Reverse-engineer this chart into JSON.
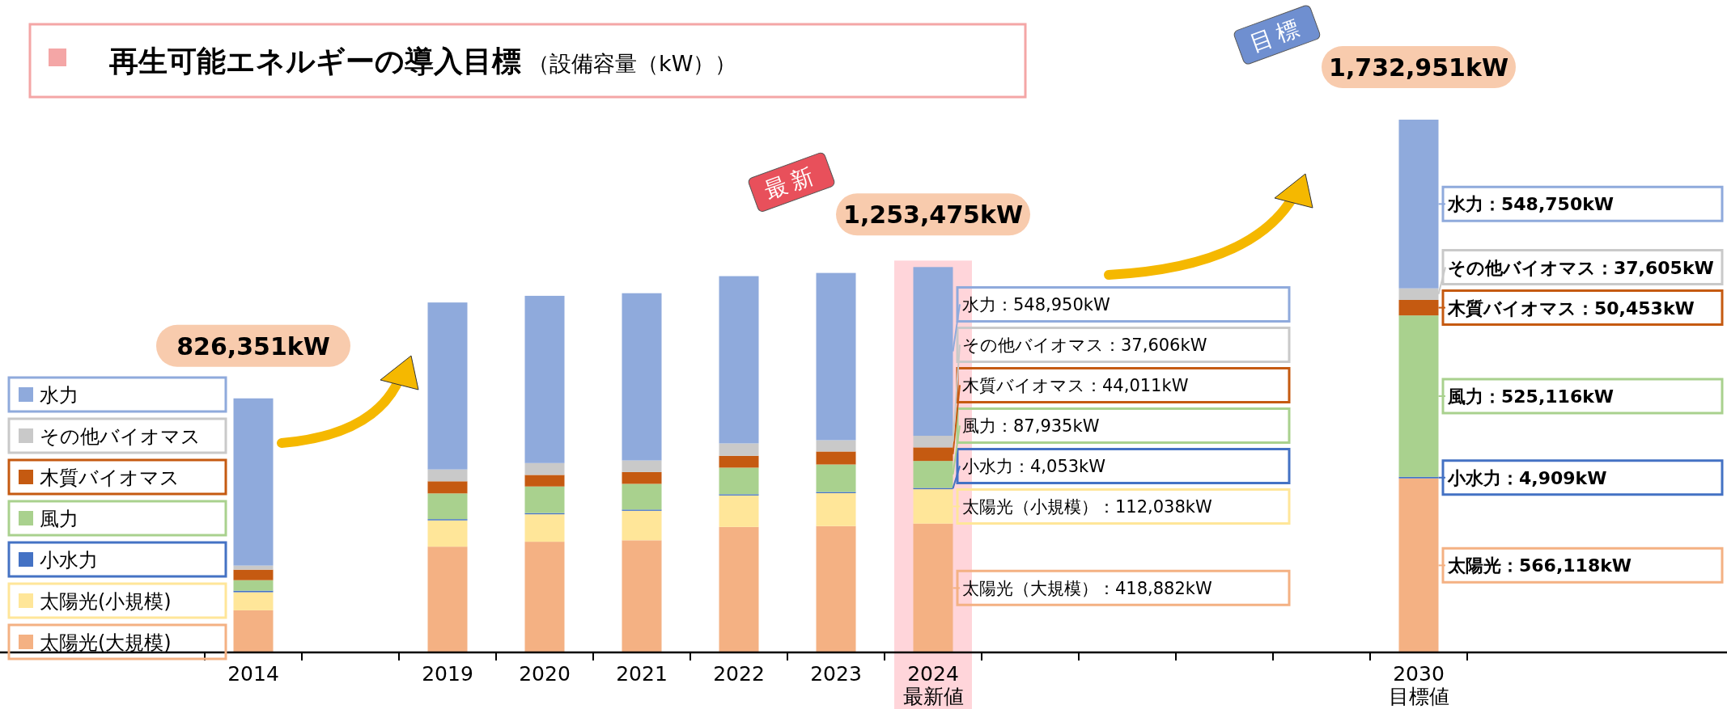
{
  "chart_data": {
    "type": "bar",
    "stacked": true,
    "title": "再生可能エネルギーの導入目標",
    "subtitle": "（設備容量（kW））",
    "categories": [
      "2014",
      null,
      "2019",
      "2020",
      "2021",
      "2022",
      "2023",
      "2024\n最新値",
      null,
      null,
      null,
      null,
      "2030\n目標値"
    ],
    "series": [
      {
        "name": "太陽光(大規模)",
        "color": "#f4b183",
        "values": [
          137000,
          null,
          344000,
          360000,
          364700,
          408000,
          410800,
          418882,
          null,
          null,
          null,
          null,
          566118
        ],
        "value_labels": [
          null,
          null,
          null,
          null,
          null,
          null,
          null,
          "太陽光（大規模）：418,882kW",
          null,
          null,
          null,
          null,
          "太陽光：566,118kW"
        ]
      },
      {
        "name": "太陽光(小規模)",
        "color": "#ffe699",
        "values": [
          58800,
          null,
          85500,
          89300,
          95900,
          102500,
          107200,
          112038,
          null,
          null,
          null,
          null,
          null
        ],
        "value_labels": [
          null,
          null,
          null,
          null,
          null,
          null,
          null,
          "太陽光（小規模）：112,038kW",
          null,
          null,
          null,
          null,
          null
        ]
      },
      {
        "name": "小水力",
        "color": "#4472c4",
        "values": [
          5000,
          null,
          4000,
          4000,
          4000,
          4000,
          4000,
          4053,
          null,
          null,
          null,
          null,
          4909
        ],
        "value_labels": [
          null,
          null,
          null,
          null,
          null,
          null,
          null,
          "小水力：4,053kW",
          null,
          null,
          null,
          null,
          "小水力：4,909kW"
        ]
      },
      {
        "name": "風力",
        "color": "#a9d18e",
        "values": [
          34200,
          null,
          83700,
          86500,
          83700,
          86500,
          89300,
          87935,
          null,
          null,
          null,
          null,
          525116
        ],
        "value_labels": [
          null,
          null,
          null,
          null,
          null,
          null,
          null,
          "風力：87,935kW",
          null,
          null,
          null,
          null,
          "風力：525,116kW"
        ]
      },
      {
        "name": "木質バイオマス",
        "color": "#c55a11",
        "values": [
          34200,
          null,
          39500,
          37600,
          38500,
          38500,
          42300,
          44011,
          null,
          null,
          null,
          null,
          50453
        ],
        "value_labels": [
          null,
          null,
          null,
          null,
          null,
          null,
          null,
          "木質バイオマス：44,011kW",
          null,
          null,
          null,
          null,
          "木質バイオマス：50,453kW"
        ]
      },
      {
        "name": "その他バイオマス",
        "color": "#c9c9c9",
        "values": [
          13200,
          null,
          38500,
          38500,
          37600,
          40400,
          36700,
          37606,
          null,
          null,
          null,
          null,
          37605
        ],
        "value_labels": [
          null,
          null,
          null,
          null,
          null,
          null,
          null,
          "その他バイオマス：37,606kW",
          null,
          null,
          null,
          null,
          "その他バイオマス：37,605kW"
        ]
      },
      {
        "name": "水力",
        "color": "#8faadc",
        "values": [
          543951,
          null,
          543000,
          544000,
          544000,
          544000,
          544000,
          548950,
          null,
          null,
          null,
          null,
          548750
        ],
        "value_labels": [
          null,
          null,
          null,
          null,
          null,
          null,
          null,
          "水力：548,950kW",
          null,
          null,
          null,
          null,
          "水力：548,750kW"
        ]
      }
    ],
    "totals": [
      "826,351kW",
      null,
      null,
      null,
      null,
      null,
      null,
      "1,253,475kW",
      null,
      null,
      null,
      null,
      "1,732,951kW"
    ],
    "bands": [
      {
        "axis": "x",
        "from": "2024\n最新値",
        "to": "2024\n最新値",
        "color": "#ffc7ce"
      }
    ],
    "annotations": [
      "最新",
      "目標"
    ],
    "legend": "left"
  }
}
